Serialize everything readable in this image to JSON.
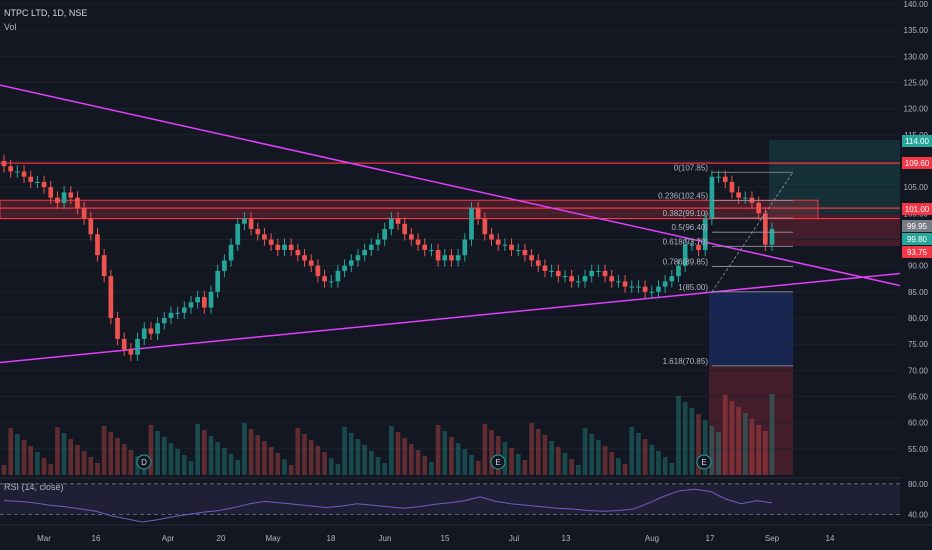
{
  "header": {
    "symbol": "NTPC LTD, 1D, NSE",
    "vol_label": "Vol",
    "rsi_label": "RSI (14, close)"
  },
  "colors": {
    "background": "#131722",
    "up": "#26a69a",
    "down": "#ef5350",
    "trendline": "#e040fb",
    "resistance": "#f23645",
    "rsi": "#7e57c2"
  },
  "chart_data": {
    "type": "candlestick",
    "ylim": [
      50,
      140
    ],
    "y_ticks": [
      55,
      60,
      65,
      70,
      75,
      80,
      85,
      90,
      95,
      100,
      105,
      110,
      115,
      120,
      125,
      130,
      135,
      140
    ],
    "x_tick_labels": [
      "Mar",
      "16",
      "Apr",
      "20",
      "May",
      "18",
      "Jun",
      "15",
      "Jul",
      "13",
      "Aug",
      "17",
      "Sep",
      "14"
    ],
    "price_badges": [
      {
        "label": "114.00",
        "color": "#26a69a"
      },
      {
        "label": "109.60",
        "color": "#f23645"
      },
      {
        "label": "101.00",
        "color": "#f23645"
      },
      {
        "label": "99.95",
        "color": "#787b86"
      },
      {
        "label": "99.80",
        "color": "#26a69a"
      },
      {
        "label": "93.75",
        "color": "#f23645"
      }
    ],
    "fib_levels": [
      {
        "ratio": "0",
        "price": 107.85,
        "label": "0(107.85)"
      },
      {
        "ratio": "0.236",
        "price": 102.45,
        "label": "0.236(102.45)"
      },
      {
        "ratio": "0.382",
        "price": 99.1,
        "label": "0.382(99.10)"
      },
      {
        "ratio": "0.5",
        "price": 96.4,
        "label": "0.5(96.40)"
      },
      {
        "ratio": "0.618",
        "price": 93.7,
        "label": "0.618(93.70)"
      },
      {
        "ratio": "0.786",
        "price": 89.85,
        "label": "0.786(89.85)"
      },
      {
        "ratio": "1",
        "price": 85.0,
        "label": "1(85.00)"
      },
      {
        "ratio": "1.618",
        "price": 70.85,
        "label": "1.618(70.85)"
      }
    ],
    "horizontal_levels": [
      109.6,
      101.0,
      99.0
    ],
    "event_markers": [
      "D",
      "E",
      "E"
    ],
    "closes": [
      109,
      108,
      108,
      107,
      106,
      106,
      105,
      103,
      102,
      104,
      103,
      101,
      99,
      96,
      92,
      88,
      80,
      76,
      74,
      73,
      76,
      78,
      77,
      79,
      80,
      81,
      81,
      82,
      83,
      84,
      82,
      85,
      89,
      91,
      94,
      98,
      99,
      97,
      96,
      95,
      94,
      93,
      94,
      93,
      92,
      91,
      90,
      88,
      87,
      87,
      89,
      90,
      91,
      92,
      93,
      94,
      95,
      97,
      99,
      98,
      96,
      95,
      94,
      93,
      93,
      91,
      92,
      91,
      92,
      95,
      101,
      99,
      96,
      95,
      94,
      94,
      93,
      93,
      92,
      91,
      90,
      89,
      89,
      88,
      88,
      87,
      87,
      88,
      89,
      89,
      88,
      87,
      87,
      86,
      86,
      86,
      85,
      85,
      86,
      87,
      88,
      90,
      94,
      94,
      93,
      99,
      107,
      107,
      106,
      104,
      103,
      103,
      102,
      100,
      94,
      97
    ],
    "rsi_ylim": [
      30,
      85
    ],
    "rsi_levels": [
      40,
      80
    ],
    "rsi_values": [
      58,
      57,
      55,
      52,
      50,
      47,
      44,
      38,
      34,
      30,
      33,
      37,
      40,
      43,
      45,
      49,
      54,
      57,
      55,
      53,
      51,
      49,
      51,
      54,
      52,
      50,
      48,
      50,
      53,
      55,
      58,
      63,
      57,
      54,
      52,
      50,
      48,
      47,
      45,
      44,
      45,
      47,
      55,
      64,
      71,
      73,
      70,
      60,
      54,
      58,
      55
    ]
  }
}
